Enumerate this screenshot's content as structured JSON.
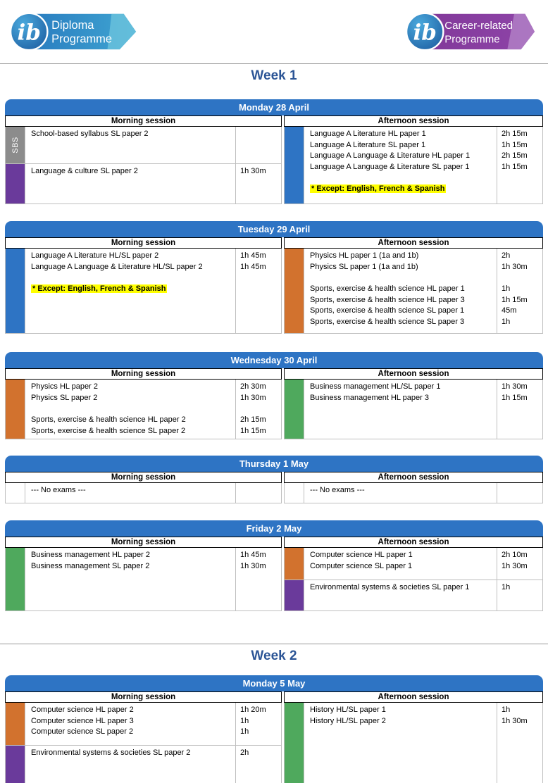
{
  "page": {
    "week1_title": "Week 1",
    "week2_title": "Week 2"
  },
  "logos": {
    "left": {
      "ib_monogram": "ib",
      "line1": "Diploma",
      "line2": "Programme"
    },
    "right": {
      "ib_monogram": "ib",
      "line1": "Career-related",
      "line2": "Programme"
    }
  },
  "labels": {
    "morning": "Morning session",
    "afternoon": "Afternoon session"
  },
  "colors": {
    "header_blue": "#2e74c4",
    "blue": "#2e74c4",
    "orange": "#d2722e",
    "green": "#4fa95d",
    "purple": "#6a3a9b",
    "gray": "#8c8c8c",
    "none": "#ffffff",
    "week_title": "#2c5596",
    "highlight": "#ffff00"
  },
  "days": [
    {
      "title": "Monday 28 April",
      "morning": {
        "rows": [
          {
            "color": "gray",
            "sidebar_label": "SBS",
            "groups": [
              [
                {
                  "name": "School-based syllabus SL paper 2",
                  "duration": ""
                }
              ]
            ]
          },
          {
            "color": "purple",
            "groups": [
              [
                {
                  "name": "Language & culture SL paper 2",
                  "duration": "1h 30m"
                }
              ]
            ]
          }
        ]
      },
      "afternoon": {
        "rows": [
          {
            "color": "blue",
            "groups": [
              [
                {
                  "name": "Language A Literature HL paper 1",
                  "duration": "2h 15m"
                },
                {
                  "name": "Language A Literature SL paper 1",
                  "duration": "1h 15m"
                },
                {
                  "name": "Language A Language & Literature HL paper 1",
                  "duration": "2h 15m"
                },
                {
                  "name": "Language A Language & Literature SL paper 1",
                  "duration": "1h 15m"
                }
              ]
            ],
            "note": "* Except: English, French & Spanish"
          }
        ]
      }
    },
    {
      "title": "Tuesday 29 April",
      "morning": {
        "rows": [
          {
            "color": "blue",
            "groups": [
              [
                {
                  "name": "Language A Literature HL/SL paper 2",
                  "duration": "1h 45m"
                },
                {
                  "name": "Language A Language & Literature HL/SL paper 2",
                  "duration": "1h 45m"
                }
              ]
            ],
            "note": "* Except: English, French & Spanish"
          }
        ]
      },
      "afternoon": {
        "rows": [
          {
            "color": "orange",
            "groups": [
              [
                {
                  "name": "Physics HL paper 1 (1a and 1b)",
                  "duration": "2h"
                },
                {
                  "name": "Physics SL paper 1 (1a and 1b)",
                  "duration": "1h 30m"
                }
              ],
              [
                {
                  "name": "Sports, exercise & health science HL paper 1",
                  "duration": "1h"
                },
                {
                  "name": "Sports, exercise & health science HL paper 3",
                  "duration": "1h 15m"
                },
                {
                  "name": "Sports, exercise & health science SL paper 1",
                  "duration": "45m"
                },
                {
                  "name": "Sports, exercise & health science SL paper 3",
                  "duration": "1h"
                }
              ]
            ]
          }
        ]
      }
    },
    {
      "title": "Wednesday 30 April",
      "morning": {
        "rows": [
          {
            "color": "orange",
            "groups": [
              [
                {
                  "name": "Physics HL paper 2",
                  "duration": "2h 30m"
                },
                {
                  "name": "Physics SL paper 2",
                  "duration": "1h 30m"
                }
              ],
              [
                {
                  "name": "Sports, exercise & health science HL paper 2",
                  "duration": "2h 15m"
                },
                {
                  "name": "Sports, exercise & health science SL paper 2",
                  "duration": "1h 15m"
                }
              ]
            ]
          }
        ]
      },
      "afternoon": {
        "rows": [
          {
            "color": "green",
            "groups": [
              [
                {
                  "name": "Business management HL/SL paper 1",
                  "duration": "1h 30m"
                },
                {
                  "name": "Business management HL paper 3",
                  "duration": "1h 15m"
                }
              ]
            ]
          }
        ]
      }
    },
    {
      "title": "Thursday 1 May",
      "morning": {
        "rows": [
          {
            "color": "none",
            "groups": [
              [
                {
                  "name": "--- No exams ---",
                  "duration": ""
                }
              ]
            ]
          }
        ]
      },
      "afternoon": {
        "rows": [
          {
            "color": "none",
            "groups": [
              [
                {
                  "name": "--- No exams ---",
                  "duration": ""
                }
              ]
            ]
          }
        ]
      }
    },
    {
      "title": "Friday 2 May",
      "morning": {
        "rows": [
          {
            "color": "green",
            "groups": [
              [
                {
                  "name": "Business management HL paper 2",
                  "duration": "1h 45m"
                },
                {
                  "name": "Business management SL paper 2",
                  "duration": "1h 30m"
                }
              ]
            ]
          }
        ]
      },
      "afternoon": {
        "rows": [
          {
            "color": "orange",
            "groups": [
              [
                {
                  "name": "Computer science HL paper 1",
                  "duration": "2h 10m"
                },
                {
                  "name": "Computer science SL paper 1",
                  "duration": "1h 30m"
                }
              ]
            ]
          },
          {
            "color": "purple",
            "groups": [
              [
                {
                  "name": "Environmental systems & societies SL paper 1",
                  "duration": "1h"
                }
              ]
            ]
          }
        ]
      }
    },
    {
      "title": "Monday 5 May",
      "morning": {
        "rows": [
          {
            "color": "orange",
            "groups": [
              [
                {
                  "name": "Computer science HL paper 2",
                  "duration": "1h 20m"
                },
                {
                  "name": "Computer science HL paper 3",
                  "duration": "1h"
                },
                {
                  "name": "Computer science SL paper 2",
                  "duration": "1h"
                }
              ]
            ]
          },
          {
            "color": "purple",
            "groups": [
              [
                {
                  "name": "Environmental systems & societies SL paper 2",
                  "duration": "2h"
                }
              ]
            ]
          }
        ]
      },
      "afternoon": {
        "rows": [
          {
            "color": "green",
            "groups": [
              [
                {
                  "name": "History HL/SL paper 1",
                  "duration": "1h"
                },
                {
                  "name": "History HL/SL paper 2",
                  "duration": "1h 30m"
                }
              ]
            ]
          }
        ]
      }
    }
  ]
}
